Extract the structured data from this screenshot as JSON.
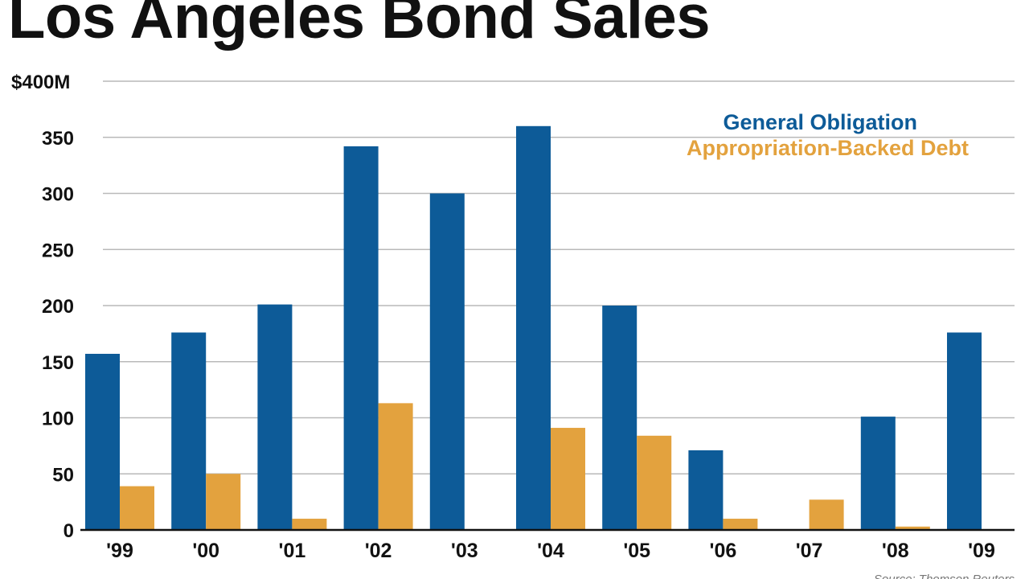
{
  "chart_data": {
    "type": "bar",
    "title": "Los Angeles Bond Sales",
    "categories": [
      "'99",
      "'00",
      "'01",
      "'02",
      "'03",
      "'04",
      "'05",
      "'06",
      "'07",
      "'08",
      "'09"
    ],
    "series": [
      {
        "name": "General Obligation",
        "color": "#0d5b98",
        "values": [
          157,
          176,
          201,
          342,
          300,
          360,
          200,
          71,
          0,
          101,
          176
        ]
      },
      {
        "name": "Appropriation-Backed Debt",
        "color": "#e3a23e",
        "values": [
          39,
          50,
          10,
          113,
          0,
          91,
          84,
          10,
          27,
          3,
          0
        ]
      }
    ],
    "yticks": [
      0,
      50,
      100,
      150,
      200,
      250,
      300,
      350,
      400
    ],
    "ytick_labels": [
      "0",
      "50",
      "100",
      "150",
      "200",
      "250",
      "300",
      "350",
      "$400M"
    ],
    "ylim": [
      0,
      400
    ],
    "xlabel": "",
    "ylabel": "",
    "grid": true,
    "legend_position": "top-right",
    "source": "Source: Thomson Reuters"
  }
}
